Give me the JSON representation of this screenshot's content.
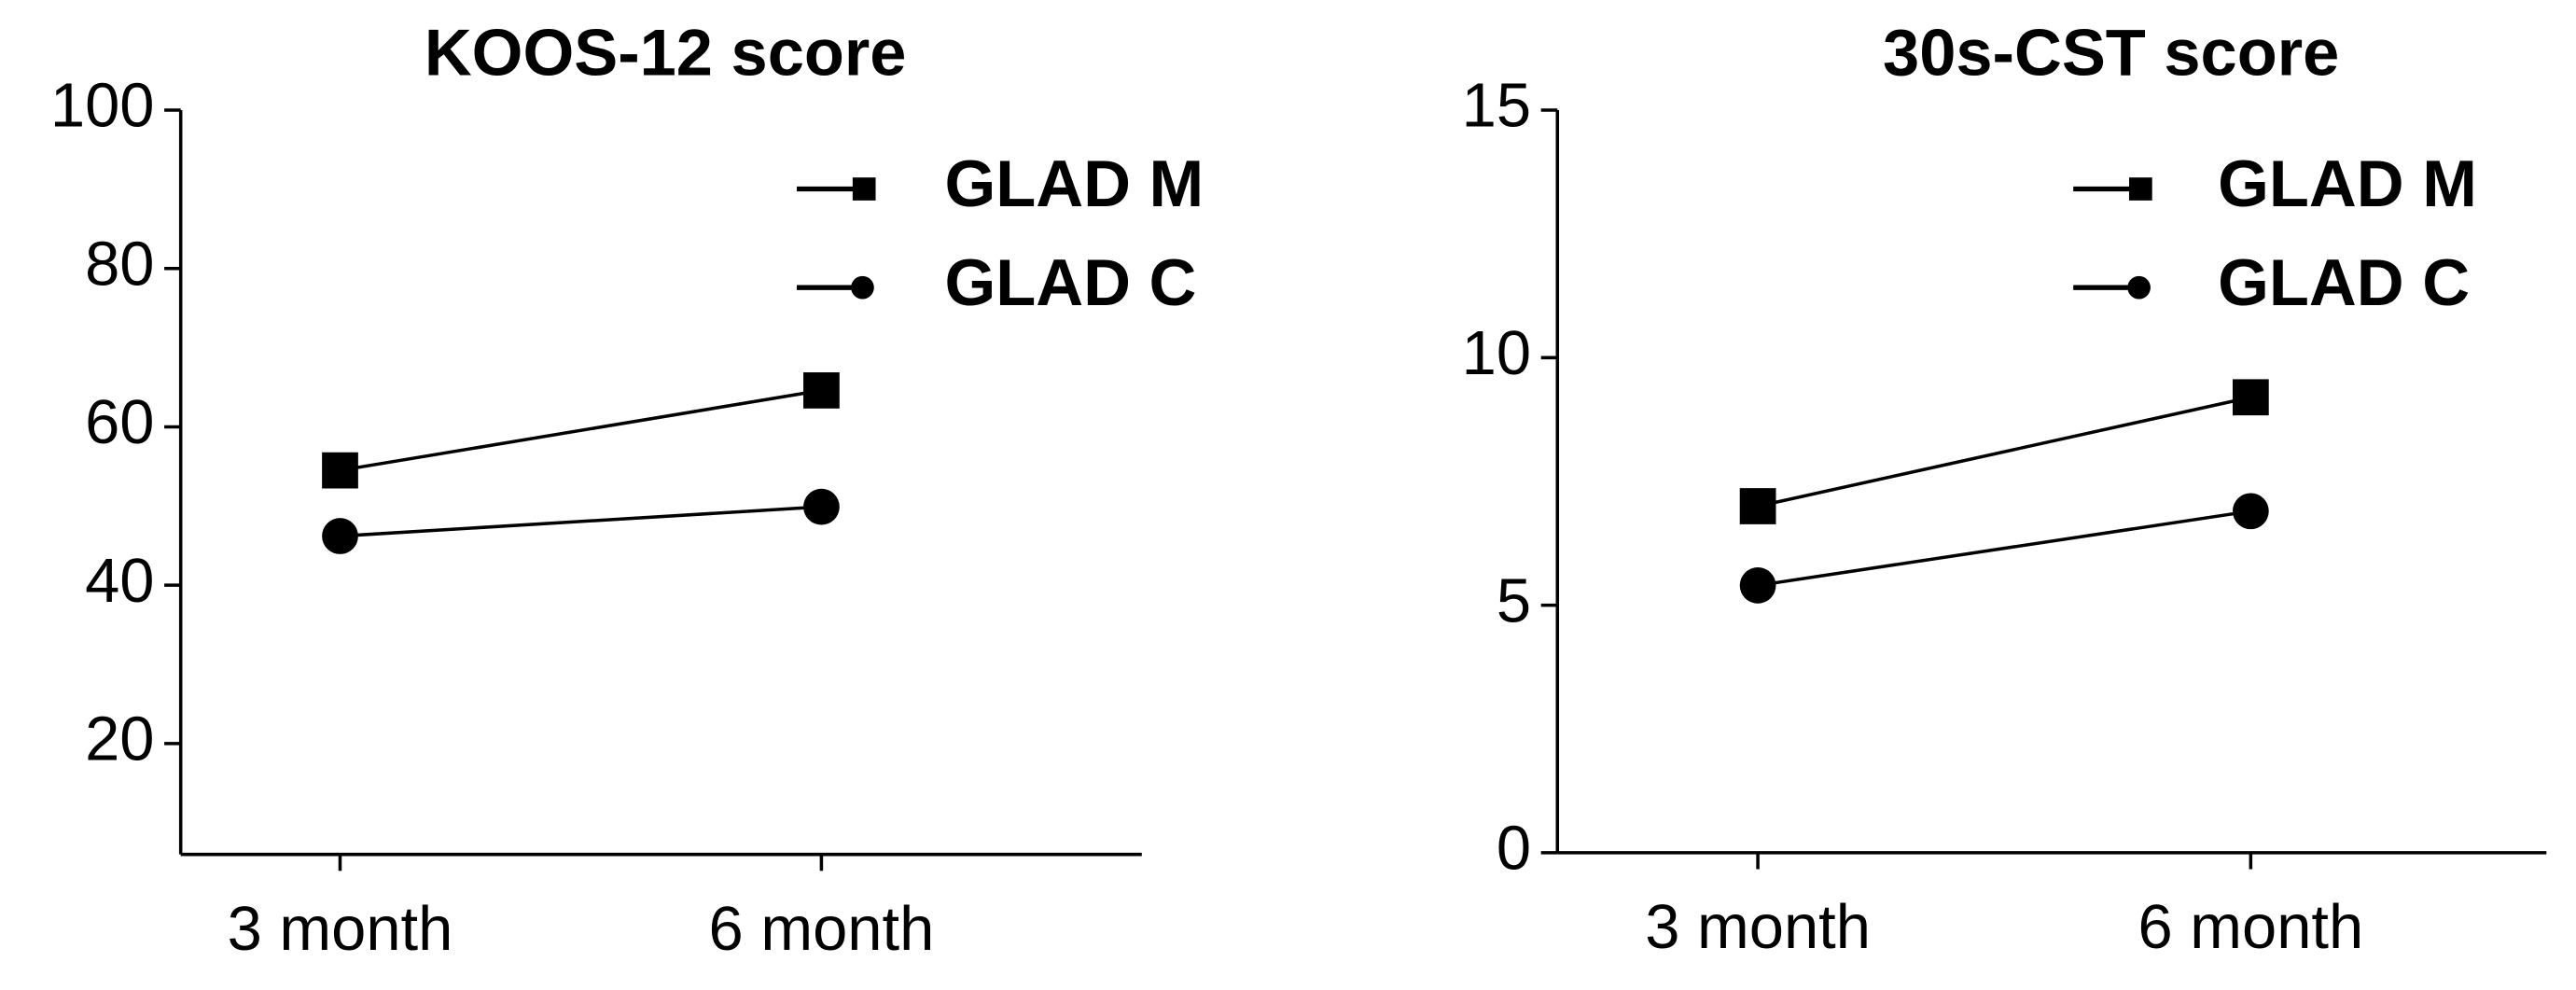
{
  "chart_data": [
    {
      "type": "line",
      "title": "KOOS-12 score",
      "categories": [
        "3 month",
        "6 month"
      ],
      "series": [
        {
          "name": "GLAD M",
          "color": "#000000",
          "marker": "square",
          "values": [
            54.5,
            64.6
          ]
        },
        {
          "name": "GLAD C",
          "color": "#000000",
          "marker": "circle",
          "values": [
            46.2,
            49.9
          ]
        }
      ],
      "ylim": [
        6,
        100
      ],
      "yticks": [
        20,
        40,
        60,
        80,
        100
      ],
      "legend": "upper right"
    },
    {
      "type": "line",
      "title": "30s-CST score",
      "categories": [
        "3 month",
        "6 month"
      ],
      "series": [
        {
          "name": "GLAD M",
          "color": "#000000",
          "marker": "square",
          "values": [
            7.0,
            9.2
          ]
        },
        {
          "name": "GLAD C",
          "color": "#000000",
          "marker": "circle",
          "values": [
            5.4,
            6.9
          ]
        }
      ],
      "ylim": [
        0,
        15
      ],
      "yticks": [
        0,
        5,
        10,
        15
      ],
      "legend": "upper right"
    }
  ]
}
